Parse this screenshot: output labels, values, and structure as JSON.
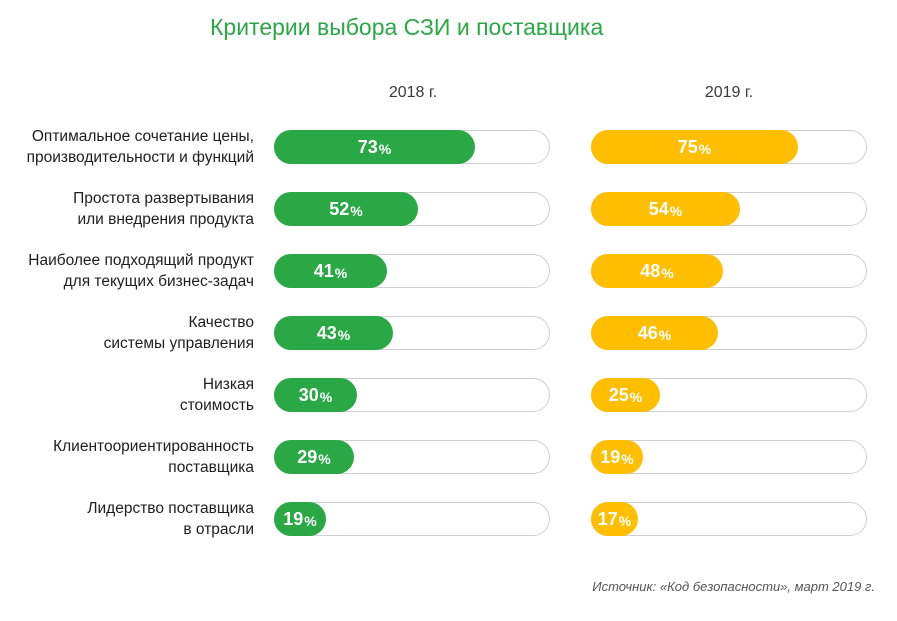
{
  "title": "Критерии выбора СЗИ и поставщика",
  "source": "Источник: «Код безопасности», март 2019 г.",
  "colors": {
    "title": "#2aa845",
    "series_2018": "#2aa845",
    "series_2019": "#ffbf00",
    "track_border": "#cfcfcf"
  },
  "chart_data": {
    "type": "bar",
    "orientation": "horizontal",
    "title": "Критерии выбора СЗИ и поставщика",
    "unit": "%",
    "xlim": [
      0,
      100
    ],
    "categories": [
      [
        "Оптимальное сочетание цены,",
        "производительности и функций"
      ],
      [
        "Простота развертывания",
        "или внедрения продукта"
      ],
      [
        "Наиболее подходящий продукт",
        "для текущих бизнес-задач"
      ],
      [
        "Качество",
        "системы управления"
      ],
      [
        "Низкая",
        "стоимость"
      ],
      [
        "Клиентоориентированность",
        "поставщика"
      ],
      [
        "Лидерство поставщика",
        "в отрасли"
      ]
    ],
    "series": [
      {
        "name": "2018 г.",
        "color": "#2aa845",
        "values": [
          73,
          52,
          41,
          43,
          30,
          29,
          19
        ]
      },
      {
        "name": "2019 г.",
        "color": "#ffbf00",
        "values": [
          75,
          54,
          48,
          46,
          25,
          19,
          17
        ]
      }
    ],
    "legend": "column headers above bars",
    "grid": false
  }
}
